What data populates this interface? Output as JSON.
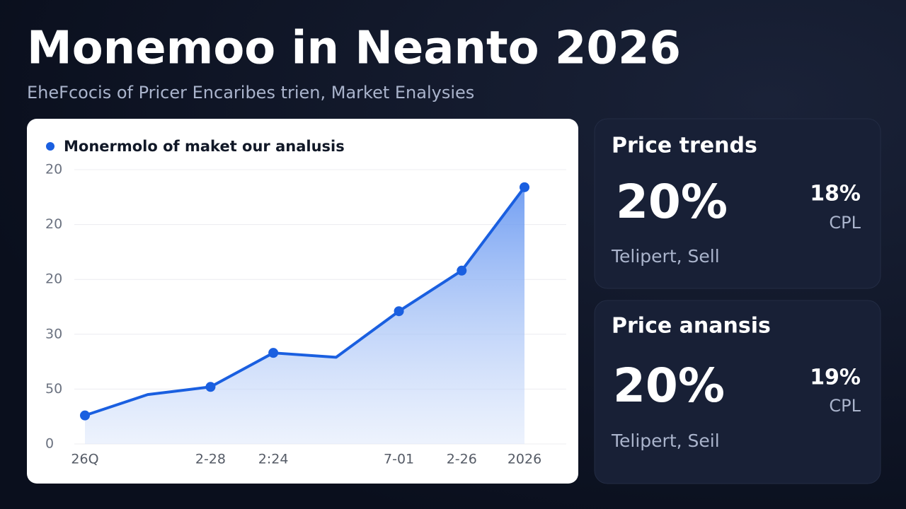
{
  "header": {
    "title": "Monemoo in Neanto 2026",
    "subtitle": "EheFcocis of Pricer Encaribes trien, Market Enalysies"
  },
  "chart_data": {
    "type": "line",
    "categories": [
      "26Q",
      null,
      "2-28",
      "2:24",
      null,
      "7-01",
      "2-26",
      "2026"
    ],
    "series": [
      {
        "name": "Monermolo of maket our analusis",
        "color": "#1a5fe0",
        "values": [
          0.52,
          0.9,
          1.04,
          1.66,
          1.58,
          2.42,
          3.16,
          4.68
        ]
      }
    ],
    "ylim": [
      0,
      5
    ],
    "yticks": [
      {
        "value": 0,
        "label": "0"
      },
      {
        "value": 1,
        "label": "50"
      },
      {
        "value": 2,
        "label": "30"
      },
      {
        "value": 3,
        "label": "20"
      },
      {
        "value": 4,
        "label": "20"
      },
      {
        "value": 5,
        "label": "20"
      }
    ],
    "grid": true,
    "area": true
  },
  "cards": [
    {
      "title": "Price trends",
      "value": "20%",
      "side_value": "18%",
      "side_label": "CPL",
      "caption": "Telipert, Sell"
    },
    {
      "title": "Price anansis",
      "value": "20%",
      "side_value": "19%",
      "side_label": "CPL",
      "caption": "Telipert, Seil"
    }
  ]
}
